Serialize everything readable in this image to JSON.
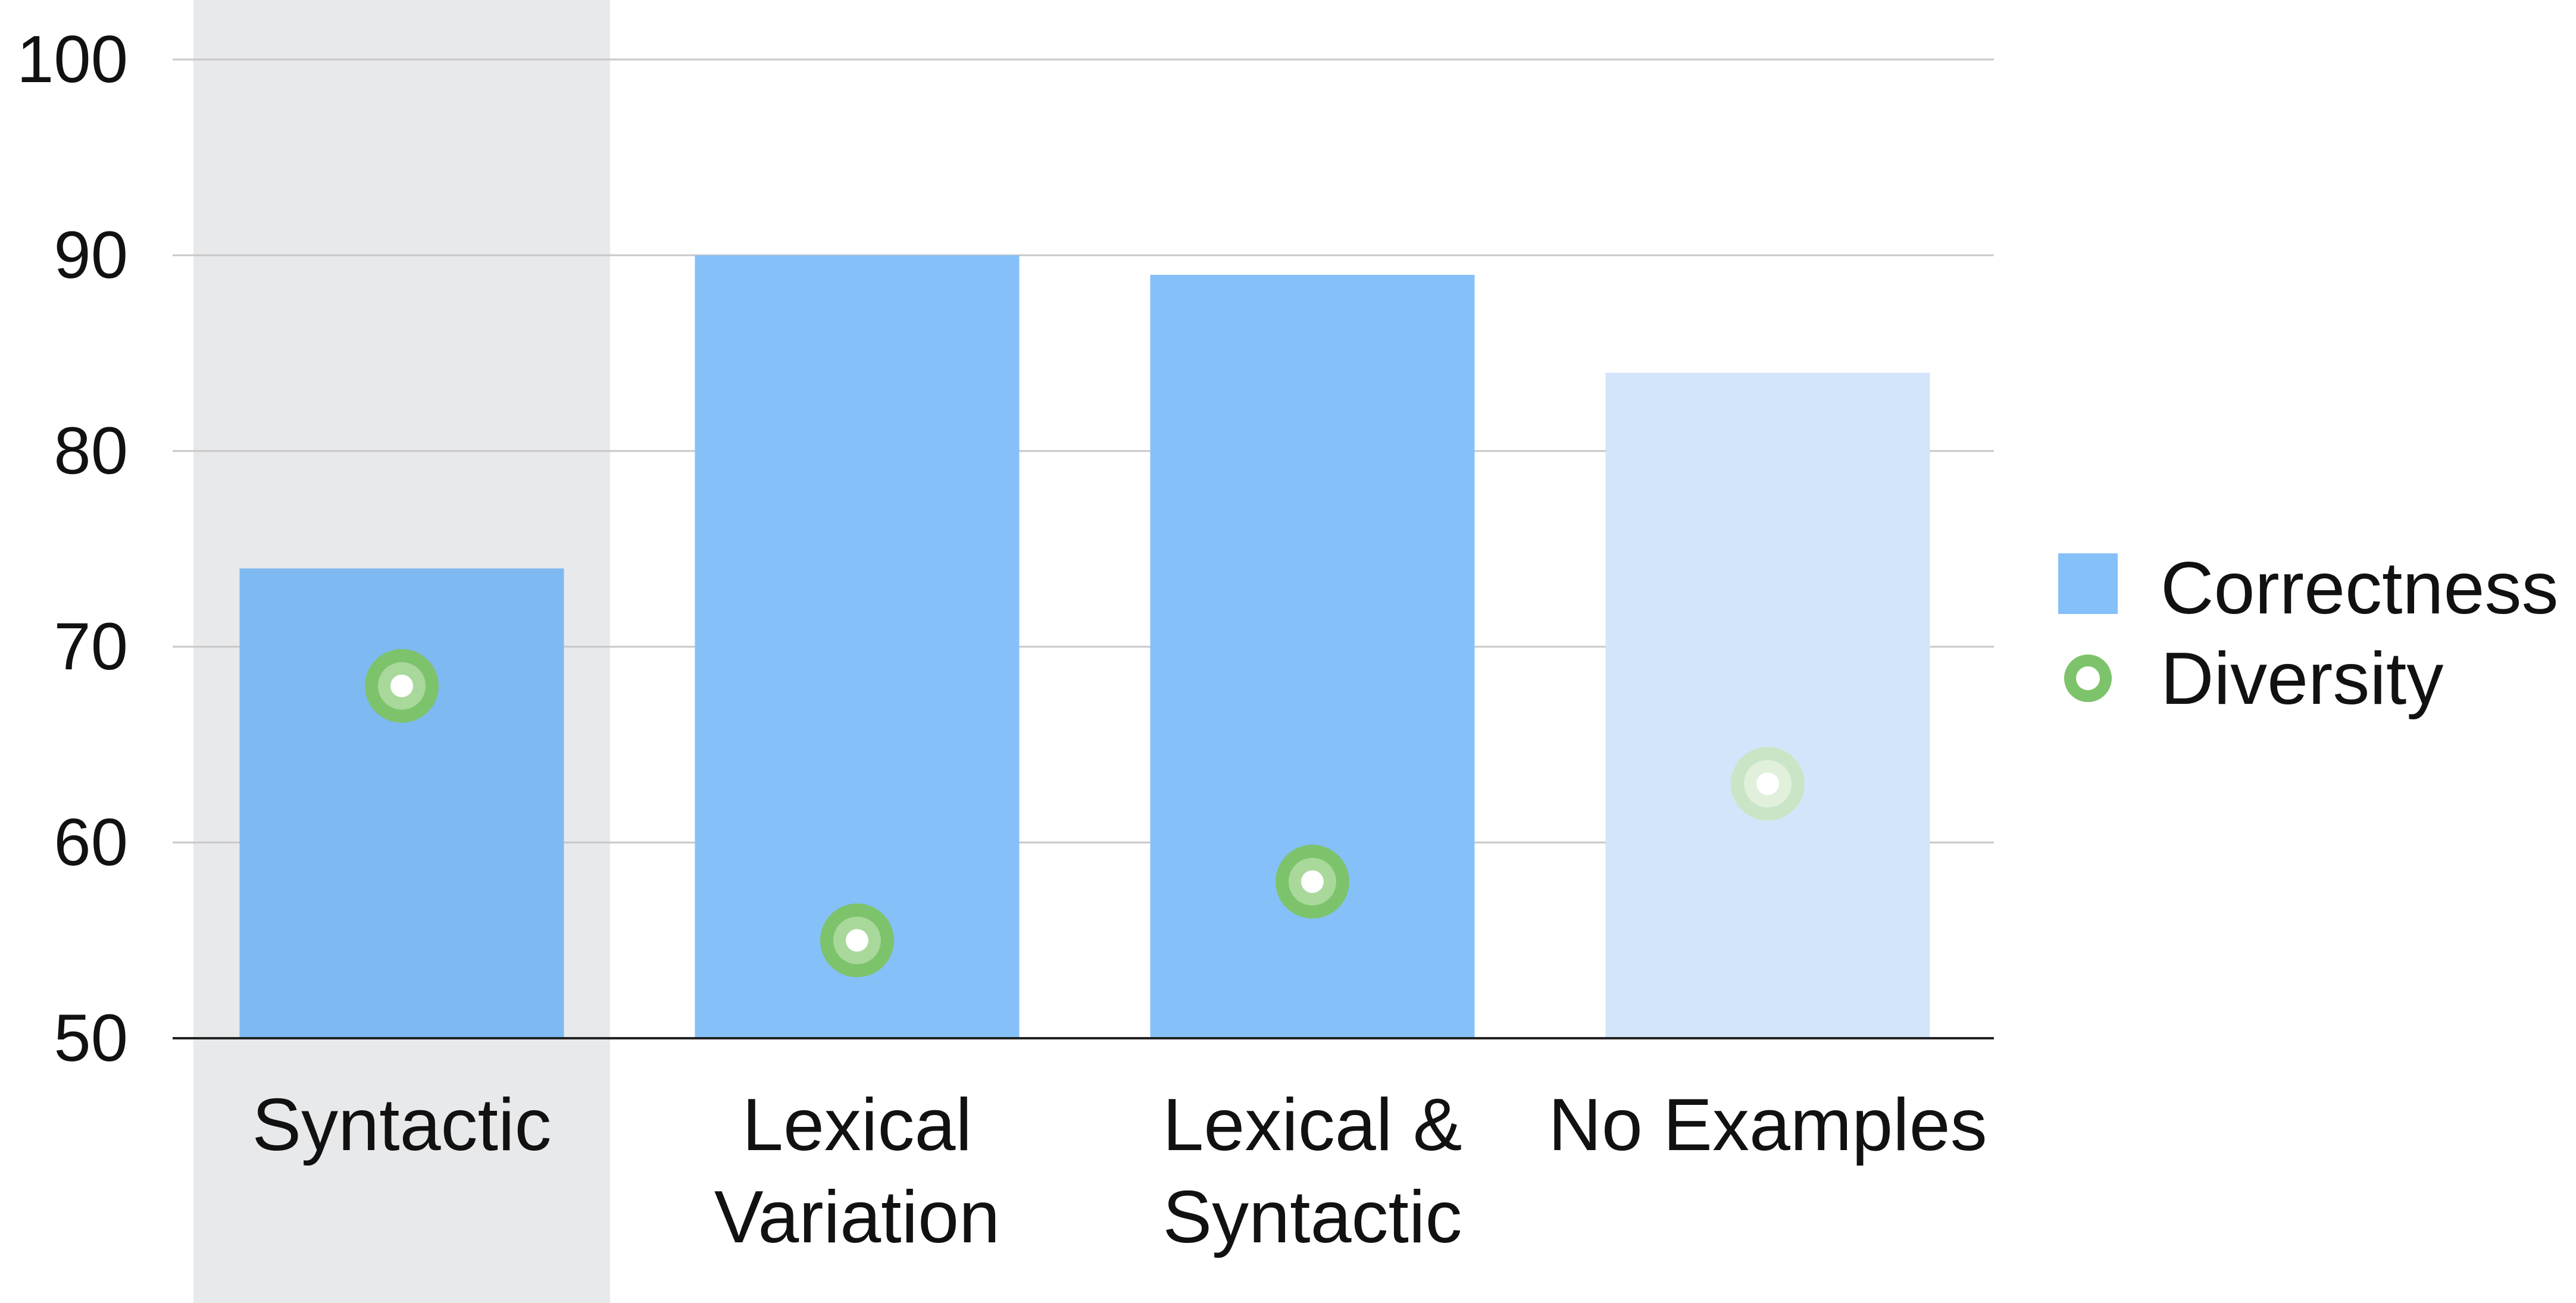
{
  "chart_data": {
    "type": "bar",
    "title": "",
    "xlabel": "",
    "ylabel": "",
    "ylim": [
      50,
      100
    ],
    "yticks": [
      50,
      60,
      70,
      80,
      90,
      100
    ],
    "grid": true,
    "legend_position": "right",
    "categories": [
      "Syntactic",
      "Lexical Variation",
      "Lexical & Syntactic",
      "No Examples"
    ],
    "category_label_lines": [
      [
        "Syntactic"
      ],
      [
        "Lexical",
        "Variation"
      ],
      [
        "Lexical &",
        "Syntactic"
      ],
      [
        "No Examples"
      ]
    ],
    "highlighted_category": "Syntactic",
    "faded_category": "No Examples",
    "series": [
      {
        "name": "Correctness",
        "kind": "bar",
        "color": "#86C0F8",
        "values": [
          74,
          90,
          89,
          84
        ]
      },
      {
        "name": "Diversity",
        "kind": "point",
        "color": "#7DC36B",
        "values": [
          68,
          55,
          58,
          63
        ]
      }
    ],
    "colors": {
      "highlight_band": "#E8E9EB",
      "bar_in_band": "#7EB9F2",
      "bar_faded": "#D2E5FA",
      "point_faded": "#C8E5BC",
      "gridline": "#C8C8C8",
      "axis": "#222222"
    }
  }
}
